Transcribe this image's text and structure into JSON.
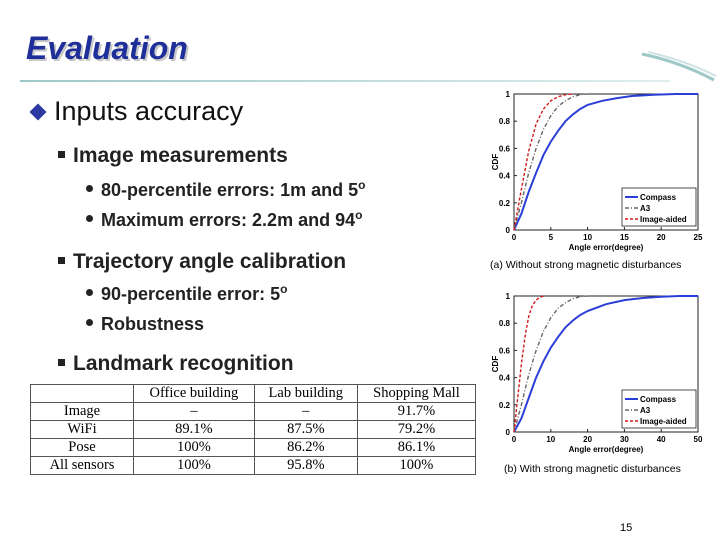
{
  "title": "Evaluation",
  "bullet": "Inputs accuracy",
  "sections": [
    {
      "label": "Image measurements",
      "items": [
        {
          "text": "80-percentile errors: 1m and 5",
          "sup": "o"
        },
        {
          "text": "Maximum errors: 2.2m and 94",
          "sup": "o"
        }
      ]
    },
    {
      "label": "Trajectory angle calibration",
      "items": [
        {
          "text": "90-percentile error: 5",
          "sup": "o"
        },
        {
          "text": "Robustness",
          "sup": ""
        }
      ]
    },
    {
      "label": "Landmark recognition",
      "items": []
    }
  ],
  "table": {
    "headers": [
      "",
      "Office building",
      "Lab building",
      "Shopping Mall"
    ],
    "rows": [
      [
        "Image",
        "–",
        "–",
        "91.7%"
      ],
      [
        "WiFi",
        "89.1%",
        "87.5%",
        "79.2%"
      ],
      [
        "Pose",
        "100%",
        "86.2%",
        "86.1%"
      ],
      [
        "All sensors",
        "100%",
        "95.8%",
        "100%"
      ]
    ]
  },
  "figures": [
    {
      "caption": "(a) Without strong magnetic disturbances",
      "xlabel": "Angle error(degree)",
      "ylabel": "CDF",
      "xticks": [
        "0",
        "5",
        "10",
        "15",
        "20",
        "25"
      ],
      "xmax": 25,
      "yticks": [
        "0",
        "0.2",
        "0.4",
        "0.6",
        "0.8",
        "1"
      ],
      "legend": [
        "Compass",
        "A3",
        "Image-aided"
      ],
      "series": [
        {
          "style": "solid",
          "color": "#2b3fd8",
          "x": [
            0,
            1,
            2,
            3,
            4,
            5,
            6,
            7,
            8,
            9,
            10,
            12,
            14,
            16,
            19,
            22,
            25
          ],
          "y": [
            0.0,
            0.12,
            0.28,
            0.42,
            0.55,
            0.65,
            0.73,
            0.8,
            0.85,
            0.89,
            0.92,
            0.95,
            0.97,
            0.985,
            0.995,
            1.0,
            1.0
          ]
        },
        {
          "style": "dash-dot",
          "color": "#666666",
          "x": [
            0,
            1,
            2,
            3,
            4,
            5,
            6,
            7,
            8,
            9,
            10
          ],
          "y": [
            0.0,
            0.2,
            0.42,
            0.6,
            0.74,
            0.84,
            0.91,
            0.95,
            0.98,
            0.995,
            1.0
          ]
        },
        {
          "style": "dashed",
          "color": "#d01818",
          "x": [
            0,
            1,
            2,
            3,
            4,
            5,
            6,
            7,
            8
          ],
          "y": [
            0.0,
            0.3,
            0.58,
            0.78,
            0.89,
            0.95,
            0.98,
            0.995,
            1.0
          ]
        }
      ]
    },
    {
      "caption": "(b) With strong magnetic disturbances",
      "xlabel": "Angle error(degree)",
      "ylabel": "CDF",
      "xticks": [
        "0",
        "10",
        "20",
        "30",
        "40",
        "50"
      ],
      "xmax": 50,
      "yticks": [
        "0",
        "0.2",
        "0.4",
        "0.6",
        "0.8",
        "1"
      ],
      "legend": [
        "Compass",
        "A3",
        "Image-aided"
      ],
      "series": [
        {
          "style": "solid",
          "color": "#2b3fd8",
          "x": [
            0,
            2,
            4,
            6,
            8,
            10,
            12,
            14,
            16,
            18,
            20,
            25,
            30,
            35,
            40,
            45,
            50
          ],
          "y": [
            0.0,
            0.1,
            0.25,
            0.4,
            0.52,
            0.62,
            0.7,
            0.77,
            0.82,
            0.86,
            0.89,
            0.94,
            0.97,
            0.985,
            0.995,
            1.0,
            1.0
          ]
        },
        {
          "style": "dash-dot",
          "color": "#666666",
          "x": [
            0,
            2,
            4,
            6,
            8,
            10,
            12,
            14,
            16,
            18,
            20
          ],
          "y": [
            0.0,
            0.2,
            0.42,
            0.6,
            0.74,
            0.84,
            0.91,
            0.95,
            0.98,
            0.995,
            1.0
          ]
        },
        {
          "style": "dashed",
          "color": "#d01818",
          "x": [
            0,
            1,
            2,
            3,
            4,
            5,
            6,
            7,
            8
          ],
          "y": [
            0.0,
            0.25,
            0.5,
            0.7,
            0.85,
            0.93,
            0.97,
            0.99,
            1.0
          ]
        }
      ]
    }
  ],
  "page_number": "15"
}
